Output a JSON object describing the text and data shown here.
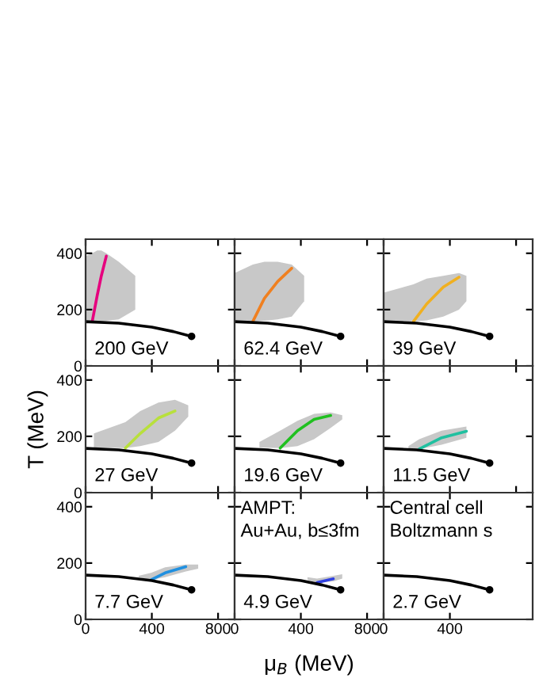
{
  "chart_data": [
    {
      "type": "line",
      "xlim": [
        0,
        900
      ],
      "ylim": [
        0,
        450
      ],
      "xticks": [
        0,
        400,
        800
      ],
      "yticks": [
        0,
        200,
        400
      ],
      "tick_labels": "y",
      "grid": false,
      "annotations": [
        "200 GeV"
      ],
      "series": [
        {
          "type": "area",
          "color": "#c8c8c8",
          "x": [
            0,
            40,
            70,
            95,
            125,
            200,
            300
          ],
          "values": [
            null,
            null,
            null,
            null,
            null,
            null,
            null
          ],
          "lower": [
            150,
            155,
            157,
            158,
            160,
            165,
            200
          ],
          "upper": [
            390,
            400,
            410,
            410,
            400,
            370,
            320
          ]
        },
        {
          "type": "line",
          "color": "#e6007e",
          "x": [
            40,
            70,
            95,
            125
          ],
          "values": [
            158,
            250,
            320,
            390
          ]
        },
        {
          "type": "line",
          "color": "#000000",
          "x": [
            0,
            200,
            400,
            530,
            640
          ],
          "values": [
            157,
            152,
            138,
            122,
            105
          ]
        },
        {
          "type": "scatter",
          "color": "#000000",
          "x": [
            640
          ],
          "values": [
            105
          ]
        }
      ]
    },
    {
      "type": "line",
      "xlim": [
        0,
        900
      ],
      "ylim": [
        0,
        450
      ],
      "xticks": [
        0,
        400,
        800
      ],
      "yticks": [
        0,
        200,
        400
      ],
      "tick_labels": false,
      "grid": false,
      "annotations": [
        "62.4 GeV"
      ],
      "series": [
        {
          "type": "area",
          "color": "#c8c8c8",
          "x": [
            0,
            110,
            180,
            260,
            345,
            420
          ],
          "values": [
            null,
            null,
            null,
            null,
            null,
            null
          ],
          "lower": [
            155,
            157,
            160,
            165,
            175,
            230
          ],
          "upper": [
            330,
            360,
            370,
            370,
            360,
            320
          ]
        },
        {
          "type": "line",
          "color": "#f08020",
          "x": [
            110,
            180,
            260,
            345
          ],
          "values": [
            158,
            240,
            300,
            347
          ]
        },
        {
          "type": "line",
          "color": "#000000",
          "x": [
            0,
            200,
            400,
            530,
            640
          ],
          "values": [
            157,
            152,
            138,
            122,
            105
          ]
        },
        {
          "type": "scatter",
          "color": "#000000",
          "x": [
            640
          ],
          "values": [
            105
          ]
        }
      ]
    },
    {
      "type": "line",
      "xlim": [
        0,
        900
      ],
      "ylim": [
        0,
        450
      ],
      "xticks": [
        0,
        400,
        800
      ],
      "yticks": [
        0,
        200,
        400
      ],
      "tick_labels": false,
      "grid": false,
      "annotations": [
        "39 GeV"
      ],
      "series": [
        {
          "type": "area",
          "color": "#c8c8c8",
          "x": [
            0,
            180,
            260,
            360,
            455,
            500
          ],
          "values": [
            null,
            null,
            null,
            null,
            null,
            null
          ],
          "lower": [
            155,
            158,
            162,
            175,
            200,
            230
          ],
          "upper": [
            260,
            290,
            310,
            320,
            330,
            320
          ]
        },
        {
          "type": "line",
          "color": "#f0b020",
          "x": [
            180,
            260,
            360,
            455
          ],
          "values": [
            158,
            220,
            280,
            315
          ]
        },
        {
          "type": "line",
          "color": "#000000",
          "x": [
            0,
            200,
            400,
            530,
            640
          ],
          "values": [
            157,
            152,
            138,
            122,
            105
          ]
        },
        {
          "type": "scatter",
          "color": "#000000",
          "x": [
            640
          ],
          "values": [
            105
          ]
        }
      ]
    },
    {
      "type": "line",
      "xlim": [
        0,
        900
      ],
      "ylim": [
        0,
        450
      ],
      "xticks": [
        0,
        400,
        800
      ],
      "yticks": [
        0,
        200,
        400
      ],
      "tick_labels": "y",
      "grid": false,
      "ylabel": "T (MeV)",
      "annotations": [
        "27 GeV"
      ],
      "series": [
        {
          "type": "area",
          "color": "#c8c8c8",
          "x": [
            50,
            240,
            330,
            440,
            540,
            620
          ],
          "values": [
            null,
            null,
            null,
            null,
            null,
            null
          ],
          "lower": [
            160,
            158,
            165,
            180,
            220,
            270
          ],
          "upper": [
            210,
            250,
            290,
            320,
            330,
            310
          ]
        },
        {
          "type": "line",
          "color": "#b8e03c",
          "x": [
            240,
            330,
            440,
            540
          ],
          "values": [
            158,
            210,
            265,
            290
          ]
        },
        {
          "type": "line",
          "color": "#000000",
          "x": [
            0,
            200,
            400,
            530,
            640
          ],
          "values": [
            157,
            152,
            138,
            122,
            105
          ]
        },
        {
          "type": "scatter",
          "color": "#000000",
          "x": [
            640
          ],
          "values": [
            105
          ]
        }
      ]
    },
    {
      "type": "line",
      "xlim": [
        0,
        900
      ],
      "ylim": [
        0,
        450
      ],
      "xticks": [
        0,
        400,
        800
      ],
      "yticks": [
        0,
        200,
        400
      ],
      "tick_labels": false,
      "grid": false,
      "annotations": [
        "19.6 GeV"
      ],
      "series": [
        {
          "type": "area",
          "color": "#c8c8c8",
          "x": [
            150,
            275,
            380,
            480,
            580,
            650
          ],
          "values": [
            null,
            null,
            null,
            null,
            null,
            null
          ],
          "lower": [
            160,
            158,
            165,
            190,
            230,
            260
          ],
          "upper": [
            180,
            220,
            255,
            280,
            285,
            275
          ]
        },
        {
          "type": "line",
          "color": "#20c020",
          "x": [
            275,
            380,
            480,
            580
          ],
          "values": [
            158,
            220,
            260,
            274
          ]
        },
        {
          "type": "line",
          "color": "#000000",
          "x": [
            0,
            200,
            400,
            530,
            640
          ],
          "values": [
            157,
            152,
            138,
            122,
            105
          ]
        },
        {
          "type": "scatter",
          "color": "#000000",
          "x": [
            640
          ],
          "values": [
            105
          ]
        }
      ]
    },
    {
      "type": "line",
      "xlim": [
        0,
        900
      ],
      "ylim": [
        0,
        450
      ],
      "xticks": [
        0,
        400,
        800
      ],
      "yticks": [
        0,
        200,
        400
      ],
      "tick_labels": false,
      "grid": false,
      "annotations": [
        "11.5 GeV"
      ],
      "series": [
        {
          "type": "area",
          "color": "#c8c8c8",
          "x": [
            150,
            215,
            350,
            500
          ],
          "values": [
            null,
            null,
            null,
            null
          ],
          "lower": [
            155,
            155,
            170,
            195
          ],
          "upper": [
            165,
            190,
            220,
            235
          ]
        },
        {
          "type": "line",
          "color": "#20c0a0",
          "x": [
            215,
            350,
            500
          ],
          "values": [
            155,
            195,
            218
          ]
        },
        {
          "type": "line",
          "color": "#000000",
          "x": [
            0,
            200,
            400,
            530,
            640
          ],
          "values": [
            157,
            152,
            138,
            122,
            105
          ]
        },
        {
          "type": "scatter",
          "color": "#000000",
          "x": [
            640
          ],
          "values": [
            105
          ]
        }
      ]
    },
    {
      "type": "line",
      "xlim": [
        0,
        900
      ],
      "ylim": [
        0,
        450
      ],
      "xticks": [
        0,
        400,
        800
      ],
      "yticks": [
        0,
        200,
        400
      ],
      "grid": false,
      "annotations": [
        "7.7 GeV"
      ],
      "series": [
        {
          "type": "area",
          "color": "#c8c8c8",
          "x": [
            320,
            395,
            480,
            605,
            680
          ],
          "values": [
            null,
            null,
            null,
            null,
            null
          ],
          "lower": [
            150,
            140,
            150,
            170,
            180
          ],
          "upper": [
            155,
            165,
            185,
            195,
            195
          ]
        },
        {
          "type": "line",
          "color": "#2090e0",
          "x": [
            395,
            480,
            605
          ],
          "values": [
            140,
            165,
            187
          ]
        },
        {
          "type": "line",
          "color": "#000000",
          "x": [
            0,
            200,
            400,
            530,
            640
          ],
          "values": [
            157,
            152,
            138,
            122,
            105
          ]
        },
        {
          "type": "scatter",
          "color": "#000000",
          "x": [
            640
          ],
          "values": [
            105
          ]
        }
      ]
    },
    {
      "type": "line",
      "xlim": [
        0,
        900
      ],
      "ylim": [
        0,
        450
      ],
      "xticks": [
        0,
        400,
        800
      ],
      "yticks": [
        0,
        200,
        400
      ],
      "tick_labels": "x",
      "grid": false,
      "xlabel": "μ$_{B}$ (MeV)",
      "annotations": [
        "4.9 GeV",
        "AMPT:\nAu+Au, b≤3fm"
      ],
      "series": [
        {
          "type": "area",
          "color": "#c8c8c8",
          "x": [
            440,
            498,
            596,
            650
          ],
          "values": [
            null,
            null,
            null,
            null
          ],
          "lower": [
            140,
            131,
            135,
            145
          ],
          "upper": [
            150,
            145,
            155,
            160
          ]
        },
        {
          "type": "line",
          "color": "#3040e0",
          "x": [
            498,
            596
          ],
          "values": [
            131,
            144
          ]
        },
        {
          "type": "line",
          "color": "#000000",
          "x": [
            0,
            200,
            400,
            530,
            640
          ],
          "values": [
            157,
            152,
            138,
            122,
            105
          ]
        },
        {
          "type": "scatter",
          "color": "#000000",
          "x": [
            640
          ],
          "values": [
            105
          ]
        }
      ]
    },
    {
      "type": "line",
      "xlim": [
        0,
        900
      ],
      "ylim": [
        0,
        450
      ],
      "xticks": [
        0,
        400
      ],
      "yticks": [
        0,
        200,
        400
      ],
      "tick_labels": "x",
      "grid": false,
      "annotations": [
        "2.7 GeV",
        "Central cell\nBoltzmann s"
      ],
      "series": [
        {
          "type": "line",
          "color": "#000000",
          "x": [
            0,
            200,
            400,
            530,
            640
          ],
          "values": [
            157,
            152,
            138,
            122,
            105
          ]
        },
        {
          "type": "scatter",
          "color": "#000000",
          "x": [
            640
          ],
          "values": [
            105
          ]
        }
      ]
    }
  ]
}
